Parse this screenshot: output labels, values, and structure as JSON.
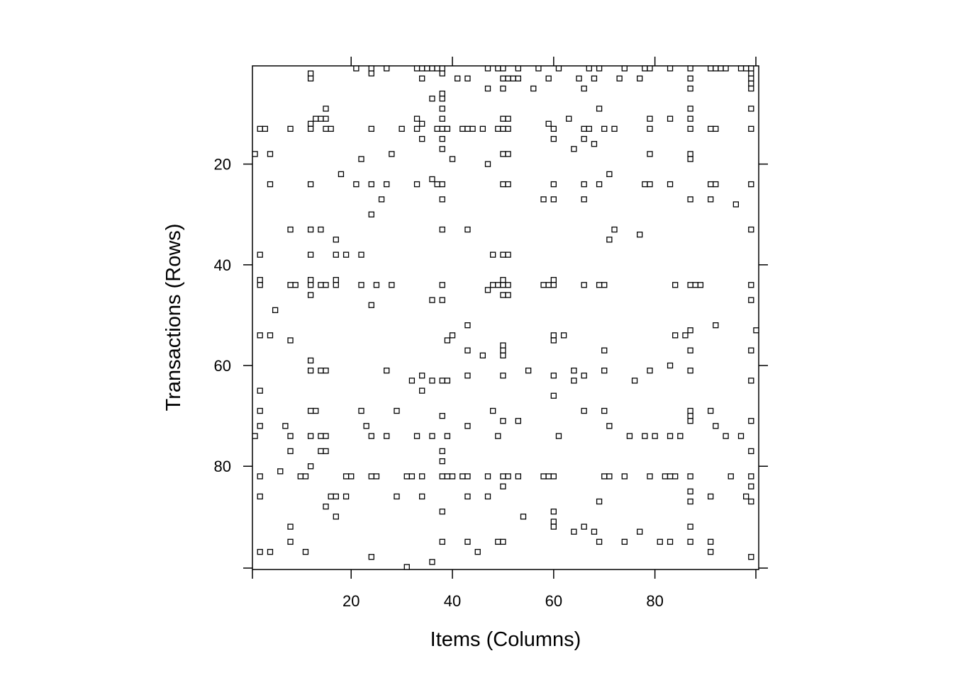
{
  "chart_data": {
    "type": "scatter",
    "title": "",
    "xlabel": "Items (Columns)",
    "ylabel": "Transactions (Rows)",
    "xlim": [
      0.5,
      100.5
    ],
    "ylim": [
      100.5,
      0.5
    ],
    "y_reversed": true,
    "x_ticks": [
      20,
      40,
      60,
      80
    ],
    "y_ticks": [
      20,
      40,
      60,
      80
    ],
    "marker": "hollow-square",
    "grid": false,
    "legend": "none",
    "points": [
      [
        21,
        1
      ],
      [
        24,
        1
      ],
      [
        27,
        1
      ],
      [
        33,
        1
      ],
      [
        34,
        1
      ],
      [
        35,
        1
      ],
      [
        36,
        1
      ],
      [
        37,
        1
      ],
      [
        38,
        1
      ],
      [
        47,
        1
      ],
      [
        49,
        1
      ],
      [
        50,
        1
      ],
      [
        53,
        1
      ],
      [
        57,
        1
      ],
      [
        61,
        1
      ],
      [
        67,
        1
      ],
      [
        69,
        1
      ],
      [
        74,
        1
      ],
      [
        78,
        1
      ],
      [
        79,
        1
      ],
      [
        83,
        1
      ],
      [
        87,
        1
      ],
      [
        91,
        1
      ],
      [
        92,
        1
      ],
      [
        93,
        1
      ],
      [
        94,
        1
      ],
      [
        97,
        1
      ],
      [
        98,
        1
      ],
      [
        99,
        1
      ],
      [
        12,
        2
      ],
      [
        24,
        2
      ],
      [
        38,
        2
      ],
      [
        99,
        2
      ],
      [
        12,
        3
      ],
      [
        34,
        3
      ],
      [
        41,
        3
      ],
      [
        43,
        3
      ],
      [
        50,
        3
      ],
      [
        51,
        3
      ],
      [
        52,
        3
      ],
      [
        53,
        3
      ],
      [
        59,
        3
      ],
      [
        65,
        3
      ],
      [
        68,
        3
      ],
      [
        73,
        3
      ],
      [
        77,
        3
      ],
      [
        87,
        3
      ],
      [
        99,
        3
      ],
      [
        99,
        4
      ],
      [
        47,
        5
      ],
      [
        50,
        5
      ],
      [
        56,
        5
      ],
      [
        66,
        5
      ],
      [
        87,
        5
      ],
      [
        99,
        5
      ],
      [
        38,
        6
      ],
      [
        36,
        7
      ],
      [
        38,
        7
      ],
      [
        15,
        9
      ],
      [
        38,
        9
      ],
      [
        69,
        9
      ],
      [
        87,
        9
      ],
      [
        99,
        9
      ],
      [
        13,
        11
      ],
      [
        14,
        11
      ],
      [
        15,
        11
      ],
      [
        33,
        11
      ],
      [
        38,
        11
      ],
      [
        50,
        11
      ],
      [
        51,
        11
      ],
      [
        63,
        11
      ],
      [
        79,
        11
      ],
      [
        83,
        11
      ],
      [
        87,
        11
      ],
      [
        12,
        12
      ],
      [
        34,
        12
      ],
      [
        59,
        12
      ],
      [
        2,
        13
      ],
      [
        3,
        13
      ],
      [
        8,
        13
      ],
      [
        12,
        13
      ],
      [
        15,
        13
      ],
      [
        16,
        13
      ],
      [
        24,
        13
      ],
      [
        30,
        13
      ],
      [
        33,
        13
      ],
      [
        37,
        13
      ],
      [
        38,
        13
      ],
      [
        39,
        13
      ],
      [
        42,
        13
      ],
      [
        43,
        13
      ],
      [
        44,
        13
      ],
      [
        46,
        13
      ],
      [
        49,
        13
      ],
      [
        50,
        13
      ],
      [
        51,
        13
      ],
      [
        60,
        13
      ],
      [
        66,
        13
      ],
      [
        67,
        13
      ],
      [
        70,
        13
      ],
      [
        72,
        13
      ],
      [
        79,
        13
      ],
      [
        87,
        13
      ],
      [
        91,
        13
      ],
      [
        92,
        13
      ],
      [
        99,
        13
      ],
      [
        34,
        15
      ],
      [
        38,
        15
      ],
      [
        60,
        15
      ],
      [
        66,
        15
      ],
      [
        68,
        16
      ],
      [
        38,
        17
      ],
      [
        64,
        17
      ],
      [
        1,
        18
      ],
      [
        4,
        18
      ],
      [
        28,
        18
      ],
      [
        50,
        18
      ],
      [
        51,
        18
      ],
      [
        79,
        18
      ],
      [
        87,
        18
      ],
      [
        87,
        19
      ],
      [
        22,
        19
      ],
      [
        40,
        19
      ],
      [
        47,
        20
      ],
      [
        71,
        22
      ],
      [
        18,
        22
      ],
      [
        36,
        23
      ],
      [
        4,
        24
      ],
      [
        12,
        24
      ],
      [
        21,
        24
      ],
      [
        24,
        24
      ],
      [
        27,
        24
      ],
      [
        33,
        24
      ],
      [
        37,
        24
      ],
      [
        38,
        24
      ],
      [
        50,
        24
      ],
      [
        51,
        24
      ],
      [
        60,
        24
      ],
      [
        66,
        24
      ],
      [
        69,
        24
      ],
      [
        78,
        24
      ],
      [
        79,
        24
      ],
      [
        83,
        24
      ],
      [
        91,
        24
      ],
      [
        92,
        24
      ],
      [
        99,
        24
      ],
      [
        26,
        27
      ],
      [
        38,
        27
      ],
      [
        58,
        27
      ],
      [
        60,
        27
      ],
      [
        66,
        27
      ],
      [
        87,
        27
      ],
      [
        91,
        27
      ],
      [
        96,
        28
      ],
      [
        24,
        30
      ],
      [
        8,
        33
      ],
      [
        12,
        33
      ],
      [
        14,
        33
      ],
      [
        38,
        33
      ],
      [
        43,
        33
      ],
      [
        72,
        33
      ],
      [
        99,
        33
      ],
      [
        77,
        34
      ],
      [
        17,
        35
      ],
      [
        71,
        35
      ],
      [
        2,
        38
      ],
      [
        12,
        38
      ],
      [
        17,
        38
      ],
      [
        19,
        38
      ],
      [
        22,
        38
      ],
      [
        48,
        38
      ],
      [
        50,
        38
      ],
      [
        51,
        38
      ],
      [
        2,
        43
      ],
      [
        12,
        43
      ],
      [
        17,
        43
      ],
      [
        50,
        43
      ],
      [
        60,
        43
      ],
      [
        2,
        44
      ],
      [
        8,
        44
      ],
      [
        9,
        44
      ],
      [
        12,
        44
      ],
      [
        14,
        44
      ],
      [
        15,
        44
      ],
      [
        17,
        44
      ],
      [
        22,
        44
      ],
      [
        25,
        44
      ],
      [
        28,
        44
      ],
      [
        38,
        44
      ],
      [
        48,
        44
      ],
      [
        49,
        44
      ],
      [
        50,
        44
      ],
      [
        51,
        44
      ],
      [
        58,
        44
      ],
      [
        59,
        44
      ],
      [
        60,
        44
      ],
      [
        66,
        44
      ],
      [
        69,
        44
      ],
      [
        70,
        44
      ],
      [
        84,
        44
      ],
      [
        87,
        44
      ],
      [
        88,
        44
      ],
      [
        89,
        44
      ],
      [
        99,
        44
      ],
      [
        47,
        45
      ],
      [
        12,
        46
      ],
      [
        50,
        46
      ],
      [
        51,
        46
      ],
      [
        36,
        47
      ],
      [
        38,
        47
      ],
      [
        99,
        47
      ],
      [
        24,
        48
      ],
      [
        5,
        49
      ],
      [
        43,
        52
      ],
      [
        92,
        52
      ],
      [
        100,
        53
      ],
      [
        2,
        54
      ],
      [
        4,
        54
      ],
      [
        40,
        54
      ],
      [
        60,
        54
      ],
      [
        62,
        54
      ],
      [
        84,
        54
      ],
      [
        86,
        54
      ],
      [
        87,
        53
      ],
      [
        8,
        55
      ],
      [
        39,
        55
      ],
      [
        60,
        55
      ],
      [
        50,
        56
      ],
      [
        43,
        57
      ],
      [
        50,
        57
      ],
      [
        70,
        57
      ],
      [
        87,
        57
      ],
      [
        99,
        57
      ],
      [
        46,
        58
      ],
      [
        50,
        58
      ],
      [
        12,
        59
      ],
      [
        83,
        60
      ],
      [
        12,
        61
      ],
      [
        14,
        61
      ],
      [
        15,
        61
      ],
      [
        27,
        61
      ],
      [
        55,
        61
      ],
      [
        64,
        61
      ],
      [
        70,
        61
      ],
      [
        79,
        61
      ],
      [
        87,
        61
      ],
      [
        34,
        62
      ],
      [
        43,
        62
      ],
      [
        50,
        62
      ],
      [
        60,
        62
      ],
      [
        66,
        62
      ],
      [
        32,
        63
      ],
      [
        36,
        63
      ],
      [
        38,
        63
      ],
      [
        39,
        63
      ],
      [
        64,
        63
      ],
      [
        76,
        63
      ],
      [
        99,
        63
      ],
      [
        2,
        65
      ],
      [
        34,
        65
      ],
      [
        60,
        66
      ],
      [
        2,
        69
      ],
      [
        12,
        69
      ],
      [
        13,
        69
      ],
      [
        22,
        69
      ],
      [
        29,
        69
      ],
      [
        48,
        69
      ],
      [
        66,
        69
      ],
      [
        70,
        69
      ],
      [
        87,
        69
      ],
      [
        91,
        69
      ],
      [
        38,
        70
      ],
      [
        87,
        70
      ],
      [
        87,
        71
      ],
      [
        50,
        71
      ],
      [
        53,
        71
      ],
      [
        99,
        71
      ],
      [
        2,
        72
      ],
      [
        7,
        72
      ],
      [
        23,
        72
      ],
      [
        43,
        72
      ],
      [
        71,
        72
      ],
      [
        92,
        72
      ],
      [
        1,
        74
      ],
      [
        8,
        74
      ],
      [
        12,
        74
      ],
      [
        14,
        74
      ],
      [
        15,
        74
      ],
      [
        24,
        74
      ],
      [
        27,
        74
      ],
      [
        33,
        74
      ],
      [
        36,
        74
      ],
      [
        39,
        74
      ],
      [
        49,
        74
      ],
      [
        61,
        74
      ],
      [
        75,
        74
      ],
      [
        78,
        74
      ],
      [
        80,
        74
      ],
      [
        83,
        74
      ],
      [
        85,
        74
      ],
      [
        94,
        74
      ],
      [
        97,
        74
      ],
      [
        8,
        77
      ],
      [
        14,
        77
      ],
      [
        15,
        77
      ],
      [
        38,
        77
      ],
      [
        99,
        77
      ],
      [
        38,
        79
      ],
      [
        12,
        80
      ],
      [
        6,
        81
      ],
      [
        2,
        82
      ],
      [
        10,
        82
      ],
      [
        11,
        82
      ],
      [
        19,
        82
      ],
      [
        20,
        82
      ],
      [
        24,
        82
      ],
      [
        25,
        82
      ],
      [
        31,
        82
      ],
      [
        32,
        82
      ],
      [
        34,
        82
      ],
      [
        38,
        82
      ],
      [
        39,
        82
      ],
      [
        40,
        82
      ],
      [
        42,
        82
      ],
      [
        43,
        82
      ],
      [
        47,
        82
      ],
      [
        50,
        82
      ],
      [
        51,
        82
      ],
      [
        53,
        82
      ],
      [
        58,
        82
      ],
      [
        59,
        82
      ],
      [
        60,
        82
      ],
      [
        70,
        82
      ],
      [
        71,
        82
      ],
      [
        74,
        82
      ],
      [
        79,
        82
      ],
      [
        82,
        82
      ],
      [
        83,
        82
      ],
      [
        84,
        82
      ],
      [
        87,
        82
      ],
      [
        95,
        82
      ],
      [
        99,
        82
      ],
      [
        50,
        84
      ],
      [
        99,
        84
      ],
      [
        87,
        85
      ],
      [
        2,
        86
      ],
      [
        16,
        86
      ],
      [
        17,
        86
      ],
      [
        19,
        86
      ],
      [
        29,
        86
      ],
      [
        34,
        86
      ],
      [
        43,
        86
      ],
      [
        47,
        86
      ],
      [
        91,
        86
      ],
      [
        98,
        86
      ],
      [
        99,
        87
      ],
      [
        69,
        87
      ],
      [
        87,
        87
      ],
      [
        15,
        88
      ],
      [
        38,
        89
      ],
      [
        60,
        89
      ],
      [
        17,
        90
      ],
      [
        54,
        90
      ],
      [
        60,
        91
      ],
      [
        8,
        92
      ],
      [
        60,
        92
      ],
      [
        66,
        92
      ],
      [
        87,
        92
      ],
      [
        64,
        93
      ],
      [
        68,
        93
      ],
      [
        77,
        93
      ],
      [
        8,
        95
      ],
      [
        38,
        95
      ],
      [
        43,
        95
      ],
      [
        49,
        95
      ],
      [
        50,
        95
      ],
      [
        69,
        95
      ],
      [
        74,
        95
      ],
      [
        81,
        95
      ],
      [
        83,
        95
      ],
      [
        87,
        95
      ],
      [
        91,
        95
      ],
      [
        2,
        97
      ],
      [
        4,
        97
      ],
      [
        11,
        97
      ],
      [
        45,
        97
      ],
      [
        91,
        97
      ],
      [
        24,
        98
      ],
      [
        99,
        98
      ],
      [
        36,
        99
      ],
      [
        31,
        100
      ]
    ]
  }
}
